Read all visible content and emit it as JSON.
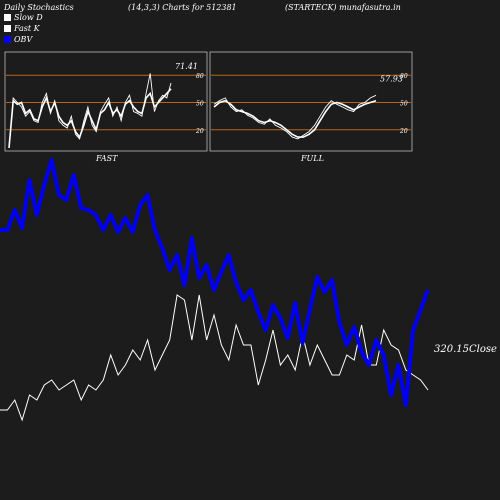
{
  "header": {
    "title": "Daily Stochastics",
    "params": "(14,3,3) Charts for 512381",
    "site": "(STARTECK) munafasutra.in"
  },
  "legend": {
    "items": [
      {
        "label": "Slow  D",
        "color": "#ffffff"
      },
      {
        "label": "Fast K",
        "color": "#ffffff"
      },
      {
        "label": "OBV",
        "color": "#0000ff"
      }
    ]
  },
  "colors": {
    "background": "#1c1c1c",
    "obv": "#0000ee",
    "close": "#ffffff",
    "levels": "#b8651b",
    "panel_border": "#bbbbbb"
  },
  "chart_data": [
    {
      "type": "line",
      "title": "FAST",
      "ylim": [
        0,
        100
      ],
      "levels": [
        20,
        50,
        80
      ],
      "tick_labels": [
        "80",
        "50",
        "20"
      ],
      "last_value_label": "71.41",
      "series": [
        {
          "name": "Slow D",
          "values": [
            0,
            52,
            48,
            50,
            38,
            42,
            32,
            30,
            45,
            55,
            40,
            50,
            35,
            28,
            25,
            30,
            18,
            12,
            25,
            40,
            30,
            20,
            38,
            42,
            50,
            38,
            42,
            35,
            48,
            52,
            45,
            40,
            38,
            55,
            60,
            45,
            50,
            55,
            60,
            65
          ]
        },
        {
          "name": "Fast K",
          "values": [
            0,
            55,
            50,
            45,
            35,
            40,
            30,
            28,
            50,
            60,
            38,
            52,
            30,
            25,
            22,
            35,
            15,
            10,
            30,
            45,
            25,
            18,
            40,
            48,
            55,
            35,
            45,
            30,
            50,
            58,
            40,
            38,
            35,
            60,
            82,
            40,
            52,
            58,
            55,
            71.41
          ]
        }
      ]
    },
    {
      "type": "line",
      "title": "FULL",
      "ylim": [
        0,
        100
      ],
      "levels": [
        20,
        50,
        80
      ],
      "tick_labels": [
        "80",
        "50",
        "20"
      ],
      "last_value_label": "57.93",
      "series": [
        {
          "name": "Slow D",
          "values": [
            45,
            50,
            52,
            48,
            42,
            40,
            38,
            35,
            30,
            28,
            30,
            28,
            25,
            20,
            15,
            12,
            12,
            15,
            20,
            30,
            40,
            48,
            50,
            48,
            45,
            42,
            45,
            48,
            50,
            52
          ]
        },
        {
          "name": "Fast K",
          "values": [
            48,
            52,
            55,
            45,
            40,
            42,
            36,
            33,
            28,
            26,
            32,
            25,
            22,
            18,
            12,
            10,
            14,
            18,
            25,
            35,
            45,
            52,
            48,
            45,
            42,
            40,
            48,
            50,
            55,
            57.93
          ]
        }
      ]
    },
    {
      "type": "line",
      "series": [
        {
          "name": "OBV",
          "values": [
            230,
            230,
            210,
            228,
            180,
            215,
            185,
            160,
            195,
            200,
            175,
            208,
            210,
            215,
            230,
            215,
            232,
            218,
            232,
            205,
            195,
            230,
            248,
            270,
            255,
            285,
            238,
            278,
            265,
            290,
            272,
            255,
            282,
            300,
            290,
            312,
            330,
            305,
            318,
            338,
            303,
            343,
            310,
            277,
            292,
            280,
            322,
            345,
            327,
            352,
            365,
            340,
            355,
            395,
            365,
            405,
            330,
            310,
            290
          ]
        },
        {
          "name": "Close",
          "values": [
            410,
            410,
            400,
            420,
            395,
            400,
            385,
            380,
            390,
            385,
            380,
            400,
            385,
            390,
            380,
            355,
            375,
            365,
            350,
            360,
            340,
            370,
            355,
            340,
            295,
            300,
            340,
            295,
            340,
            315,
            345,
            360,
            325,
            345,
            345,
            385,
            360,
            330,
            365,
            355,
            370,
            335,
            365,
            345,
            360,
            375,
            375,
            355,
            360,
            325,
            365,
            365,
            330,
            345,
            350,
            370,
            375,
            380,
            390
          ]
        }
      ],
      "last_value_label": "320.15",
      "label_suffix": "Close"
    }
  ]
}
